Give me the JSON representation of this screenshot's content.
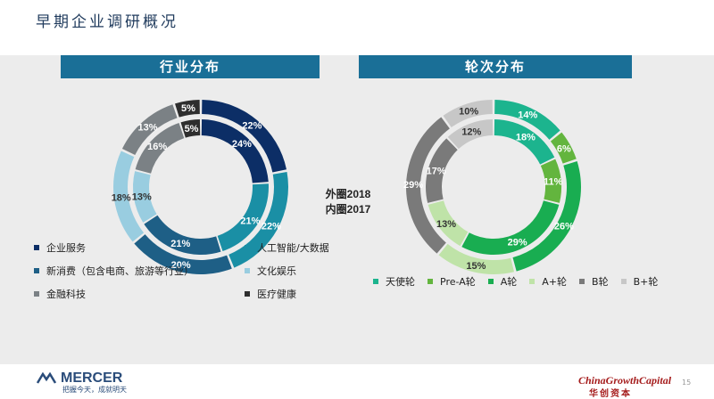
{
  "page": {
    "title": "早期企业调研概况",
    "page_number": "15"
  },
  "center_label": {
    "outer": "外圈2018",
    "inner": "内圈2017"
  },
  "colors": {
    "enterprise_service": "#0c2e66",
    "ai_bigdata": "#1a8fa5",
    "new_consumption": "#1e5f86",
    "culture_entertainment": "#99cde0",
    "fintech": "#7b8185",
    "healthcare": "#2e2e2e",
    "angel": "#1cb48e",
    "pre_a": "#63b53e",
    "a_round": "#19ad51",
    "a_plus": "#bfe3a8",
    "b_round": "#7a7a7a",
    "b_plus": "#c7c7c7"
  },
  "chart_data": [
    {
      "type": "pie",
      "title": "行业分布",
      "subtitle": "外圈2018 内圈2017",
      "categories": [
        "企业服务",
        "人工智能/大数据",
        "新消费（包含电商、旅游等行业）",
        "文化娱乐",
        "金融科技",
        "医疗健康"
      ],
      "series": [
        {
          "name": "外圈2018",
          "values": [
            22,
            22,
            20,
            18,
            13,
            5
          ],
          "labels": [
            "22%",
            "22%",
            "20%",
            "18%",
            "13%",
            "5%"
          ]
        },
        {
          "name": "内圈2017",
          "values": [
            24,
            21,
            21,
            13,
            16,
            5
          ],
          "labels": [
            "24%",
            "21%",
            "21%",
            "13%",
            "16%",
            "5%"
          ]
        }
      ]
    },
    {
      "type": "pie",
      "title": "轮次分布",
      "subtitle": "外圈2018 内圈2017",
      "categories": [
        "天使轮",
        "Pre-A轮",
        "A轮",
        "A+轮",
        "B轮",
        "B+轮"
      ],
      "series": [
        {
          "name": "外圈2018",
          "values": [
            14,
            6,
            26,
            15,
            29,
            10
          ],
          "labels": [
            "14%",
            "6%",
            "26%",
            "15%",
            "29%",
            "10%"
          ]
        },
        {
          "name": "内圈2017",
          "values": [
            18,
            11,
            29,
            13,
            17,
            12
          ],
          "labels": [
            "18%",
            "11%",
            "29%",
            "13%",
            "17%",
            "12%"
          ]
        }
      ]
    }
  ],
  "legend_industry": [
    {
      "label": "企业服务",
      "color": "#0c2e66"
    },
    {
      "label": "人工智能/大数据",
      "color": "#1a8fa5"
    },
    {
      "label": "新消费（包含电商、旅游等行业）",
      "color": "#1e5f86"
    },
    {
      "label": "文化娱乐",
      "color": "#99cde0"
    },
    {
      "label": "金融科技",
      "color": "#7b8185"
    },
    {
      "label": "医疗健康",
      "color": "#2e2e2e"
    }
  ],
  "legend_round": [
    {
      "label": "天使轮",
      "color": "#1cb48e"
    },
    {
      "label": "Pre-A轮",
      "color": "#63b53e"
    },
    {
      "label": "A轮",
      "color": "#19ad51"
    },
    {
      "label": "A+轮",
      "color": "#bfe3a8"
    },
    {
      "label": "B轮",
      "color": "#7a7a7a"
    },
    {
      "label": "B+轮",
      "color": "#c7c7c7"
    }
  ],
  "footer": {
    "mercer": "MERCER",
    "mercer_tagline": "把握今天，成就明天",
    "cgc": "ChinaGrowthCapital",
    "cgc_cn": "华创资本"
  }
}
